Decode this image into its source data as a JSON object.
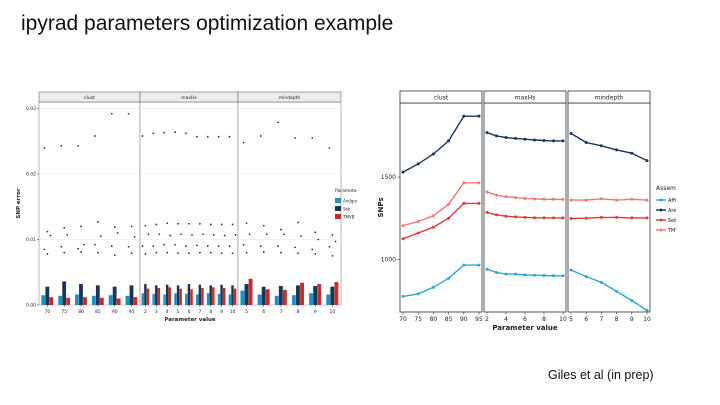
{
  "slide": {
    "title": "ipyrad parameters optimization example",
    "citation": "Giles et al (in prep)"
  },
  "colors": {
    "Arelgiosa": "#1f8fc4",
    "Seb": "#1c3557",
    "TMVB": "#c42d2d",
    "Affincki": "#2aa7d6",
    "Seb_right": "#e03b3b",
    "TMVB_right": "#f0787a"
  },
  "chart_data": [
    {
      "type": "bar",
      "panels": [
        {
          "name": "clust",
          "categories": [
            "70",
            "75",
            "80",
            "85",
            "90",
            "95"
          ]
        },
        {
          "name": "maxHs",
          "categories": [
            "2",
            "3",
            "4",
            "5",
            "6",
            "7",
            "8",
            "9",
            "10"
          ]
        },
        {
          "name": "mindepth",
          "categories": [
            "5",
            "6",
            "7",
            "8",
            "9",
            "10"
          ]
        }
      ],
      "xlabel": "Parameter value",
      "ylabel": "SNP error",
      "ylim": [
        0,
        0.031
      ],
      "yticks": [
        "0.00",
        "0.01",
        "0.02",
        "0.03"
      ],
      "ytick_values": [
        0,
        0.01,
        0.02,
        0.03
      ],
      "legend": {
        "title": "Parameter",
        "position": "right"
      },
      "series": [
        {
          "name": "Arelgiosa",
          "color": "#1f8fc4",
          "values": [
            [
              0.0015,
              0.0014,
              0.0016,
              0.0014,
              0.0015,
              0.0014
            ],
            [
              0.0018,
              0.0017,
              0.0016,
              0.0018,
              0.0017,
              0.0016,
              0.0018,
              0.0017,
              0.0016
            ],
            [
              0.0022,
              0.0016,
              0.0014,
              0.0015,
              0.0018,
              0.0016
            ]
          ]
        },
        {
          "name": "Seb",
          "color": "#1c3557",
          "values": [
            [
              0.0028,
              0.0036,
              0.0032,
              0.003,
              0.0028,
              0.003
            ],
            [
              0.0032,
              0.003,
              0.0031,
              0.003,
              0.0032,
              0.0031,
              0.003,
              0.0031,
              0.003
            ],
            [
              0.0032,
              0.0028,
              0.0029,
              0.003,
              0.0029,
              0.0028
            ]
          ]
        },
        {
          "name": "TMVB",
          "color": "#c42d2d",
          "values": [
            [
              0.0012,
              0.0011,
              0.0012,
              0.0011,
              0.001,
              0.0012
            ],
            [
              0.0025,
              0.0026,
              0.0027,
              0.0025,
              0.0024,
              0.0026,
              0.0027,
              0.0026,
              0.0025
            ],
            [
              0.004,
              0.0024,
              0.0023,
              0.0034,
              0.0032,
              0.0035
            ]
          ]
        }
      ],
      "outliers": [
        [
          [
            0.024,
            0.0112,
            0.0106,
            0.0085,
            0.0078
          ],
          [
            0.0243,
            0.0118,
            0.0107,
            0.0089,
            0.008
          ],
          [
            0.0243,
            0.012,
            0.0092,
            0.0086,
            0.0081
          ],
          [
            0.0258,
            0.0127,
            0.0105,
            0.0092,
            0.008
          ],
          [
            0.0292,
            0.0119,
            0.011,
            0.009,
            0.0076
          ],
          [
            0.0292,
            0.012,
            0.0104,
            0.0089,
            0.0079
          ]
        ],
        [
          [
            0.0258,
            0.0121,
            0.0108,
            0.009,
            0.0078
          ],
          [
            0.0262,
            0.0123,
            0.0108,
            0.009,
            0.008
          ],
          [
            0.0263,
            0.0125,
            0.0106,
            0.0092,
            0.008
          ],
          [
            0.0264,
            0.0124,
            0.0108,
            0.0092,
            0.0079
          ],
          [
            0.0262,
            0.0124,
            0.0107,
            0.009,
            0.0079
          ],
          [
            0.0257,
            0.0124,
            0.0108,
            0.0091,
            0.008
          ],
          [
            0.0257,
            0.0123,
            0.0107,
            0.009,
            0.008
          ],
          [
            0.0257,
            0.0123,
            0.0106,
            0.009,
            0.0079
          ],
          [
            0.0257,
            0.0123,
            0.0107,
            0.009,
            0.0079
          ]
        ],
        [
          [
            0.0248,
            0.0125,
            0.0108,
            0.0092,
            0.008
          ],
          [
            0.0258,
            0.0121,
            0.0108,
            0.009,
            0.0081
          ],
          [
            0.0279,
            0.0115,
            0.0108,
            0.009,
            0.008
          ],
          [
            0.0255,
            0.0126,
            0.0105,
            0.0088,
            0.0079
          ],
          [
            0.0255,
            0.0111,
            0.01,
            0.0085,
            0.0078
          ],
          [
            0.024,
            0.0107,
            0.0097,
            0.0089,
            0.0075
          ]
        ]
      ]
    },
    {
      "type": "line",
      "panels": [
        {
          "name": "clust",
          "x": [
            70,
            75,
            80,
            85,
            90,
            95
          ],
          "xticks": [
            70,
            75,
            80,
            85,
            90,
            95
          ]
        },
        {
          "name": "maxHs",
          "x": [
            2,
            3,
            4,
            5,
            6,
            7,
            8,
            9,
            10
          ],
          "xticks": [
            2,
            4,
            6,
            8,
            10
          ]
        },
        {
          "name": "mindepth",
          "x": [
            5,
            6,
            7,
            8,
            9,
            10
          ],
          "xticks": [
            5,
            6,
            7,
            8,
            9,
            10
          ]
        }
      ],
      "xlabel": "Parameter value",
      "ylabel": "SNPs",
      "ylim": [
        680,
        1950
      ],
      "yticks": [
        1000,
        1500
      ],
      "legend": {
        "title": "Assembly",
        "position": "right"
      },
      "series": [
        {
          "name": "Affincki",
          "color": "#2aa7d6",
          "values": [
            [
              775,
              790,
              830,
              885,
              965,
              965
            ],
            [
              940,
              920,
              910,
              910,
              905,
              903,
              902,
              900,
              900
            ],
            [
              935,
              895,
              860,
              805,
              750,
              690
            ]
          ]
        },
        {
          "name": "Arelgiosa",
          "color": "#1c3557",
          "values": [
            [
              1530,
              1580,
              1640,
              1720,
              1870,
              1870
            ],
            [
              1770,
              1750,
              1740,
              1735,
              1730,
              1725,
              1722,
              1720,
              1720
            ],
            [
              1765,
              1710,
              1690,
              1665,
              1645,
              1600
            ]
          ]
        },
        {
          "name": "Seb",
          "color": "#e03b3b",
          "values": [
            [
              1125,
              1160,
              1195,
              1250,
              1340,
              1340
            ],
            [
              1285,
              1270,
              1262,
              1258,
              1255,
              1253,
              1252,
              1252,
              1252
            ],
            [
              1248,
              1250,
              1255,
              1255,
              1252,
              1252
            ]
          ]
        },
        {
          "name": "TMVB",
          "color": "#f0787a",
          "values": [
            [
              1205,
              1230,
              1265,
              1335,
              1465,
              1465
            ],
            [
              1410,
              1390,
              1380,
              1375,
              1370,
              1367,
              1365,
              1365,
              1364
            ],
            [
              1360,
              1360,
              1368,
              1360,
              1365,
              1360
            ]
          ]
        }
      ]
    }
  ]
}
